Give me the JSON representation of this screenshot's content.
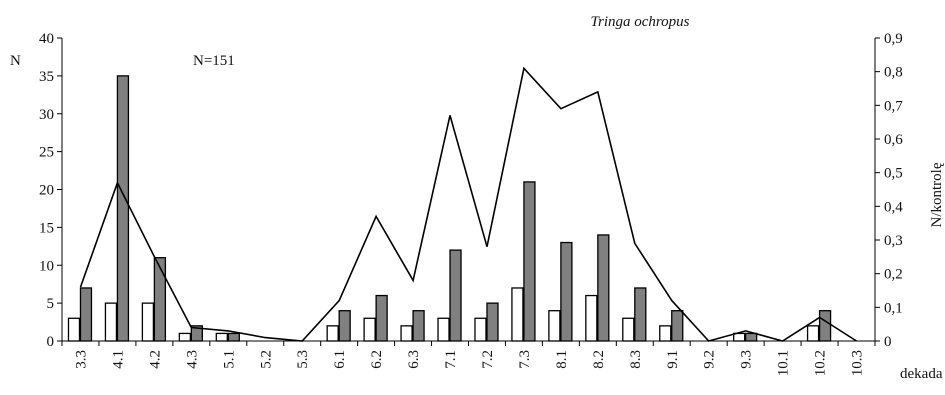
{
  "chart_data": {
    "type": "bar",
    "title": "Tringa ochropus",
    "annotation": "N=151",
    "xlabel": "dekada",
    "ylabel_left": "N",
    "ylabel_right": "N/kontrolę",
    "ylim_left": [
      0,
      40
    ],
    "ylim_right": [
      0,
      0.9
    ],
    "yticks_left": [
      "0",
      "5",
      "10",
      "15",
      "20",
      "25",
      "30",
      "35",
      "40"
    ],
    "yticks_right": [
      "0",
      "0,1",
      "0,2",
      "0,3",
      "0,4",
      "0,5",
      "0,6",
      "0,7",
      "0,8",
      "0,9"
    ],
    "grid": false,
    "categories": [
      "3.3",
      "4.1",
      "4.2",
      "4.3",
      "5.1",
      "5.2",
      "5.3",
      "6.1",
      "6.2",
      "6.3",
      "7.1",
      "7.2",
      "7.3",
      "8.1",
      "8.2",
      "8.3",
      "9.1",
      "9.2",
      "9.3",
      "10.1",
      "10.2",
      "10.3"
    ],
    "series": [
      {
        "kind": "bar",
        "axis": "left",
        "color": "#ffffff",
        "values": [
          3,
          5,
          5,
          1,
          1,
          0,
          0,
          2,
          3,
          2,
          3,
          3,
          7,
          4,
          6,
          3,
          2,
          0,
          1,
          0,
          2,
          0
        ]
      },
      {
        "kind": "bar",
        "axis": "left",
        "color": "#808080",
        "values": [
          7,
          35,
          11,
          2,
          1,
          0,
          0,
          4,
          6,
          4,
          12,
          5,
          21,
          13,
          14,
          7,
          4,
          0,
          1,
          0,
          4,
          0
        ]
      },
      {
        "kind": "line",
        "axis": "right",
        "color": "#000000",
        "values": [
          0.16,
          0.47,
          0.25,
          0.04,
          0.03,
          0.01,
          0.0,
          0.12,
          0.37,
          0.18,
          0.67,
          0.28,
          0.81,
          0.69,
          0.74,
          0.29,
          0.12,
          0.0,
          0.03,
          0.0,
          0.07,
          0.0
        ]
      }
    ]
  }
}
